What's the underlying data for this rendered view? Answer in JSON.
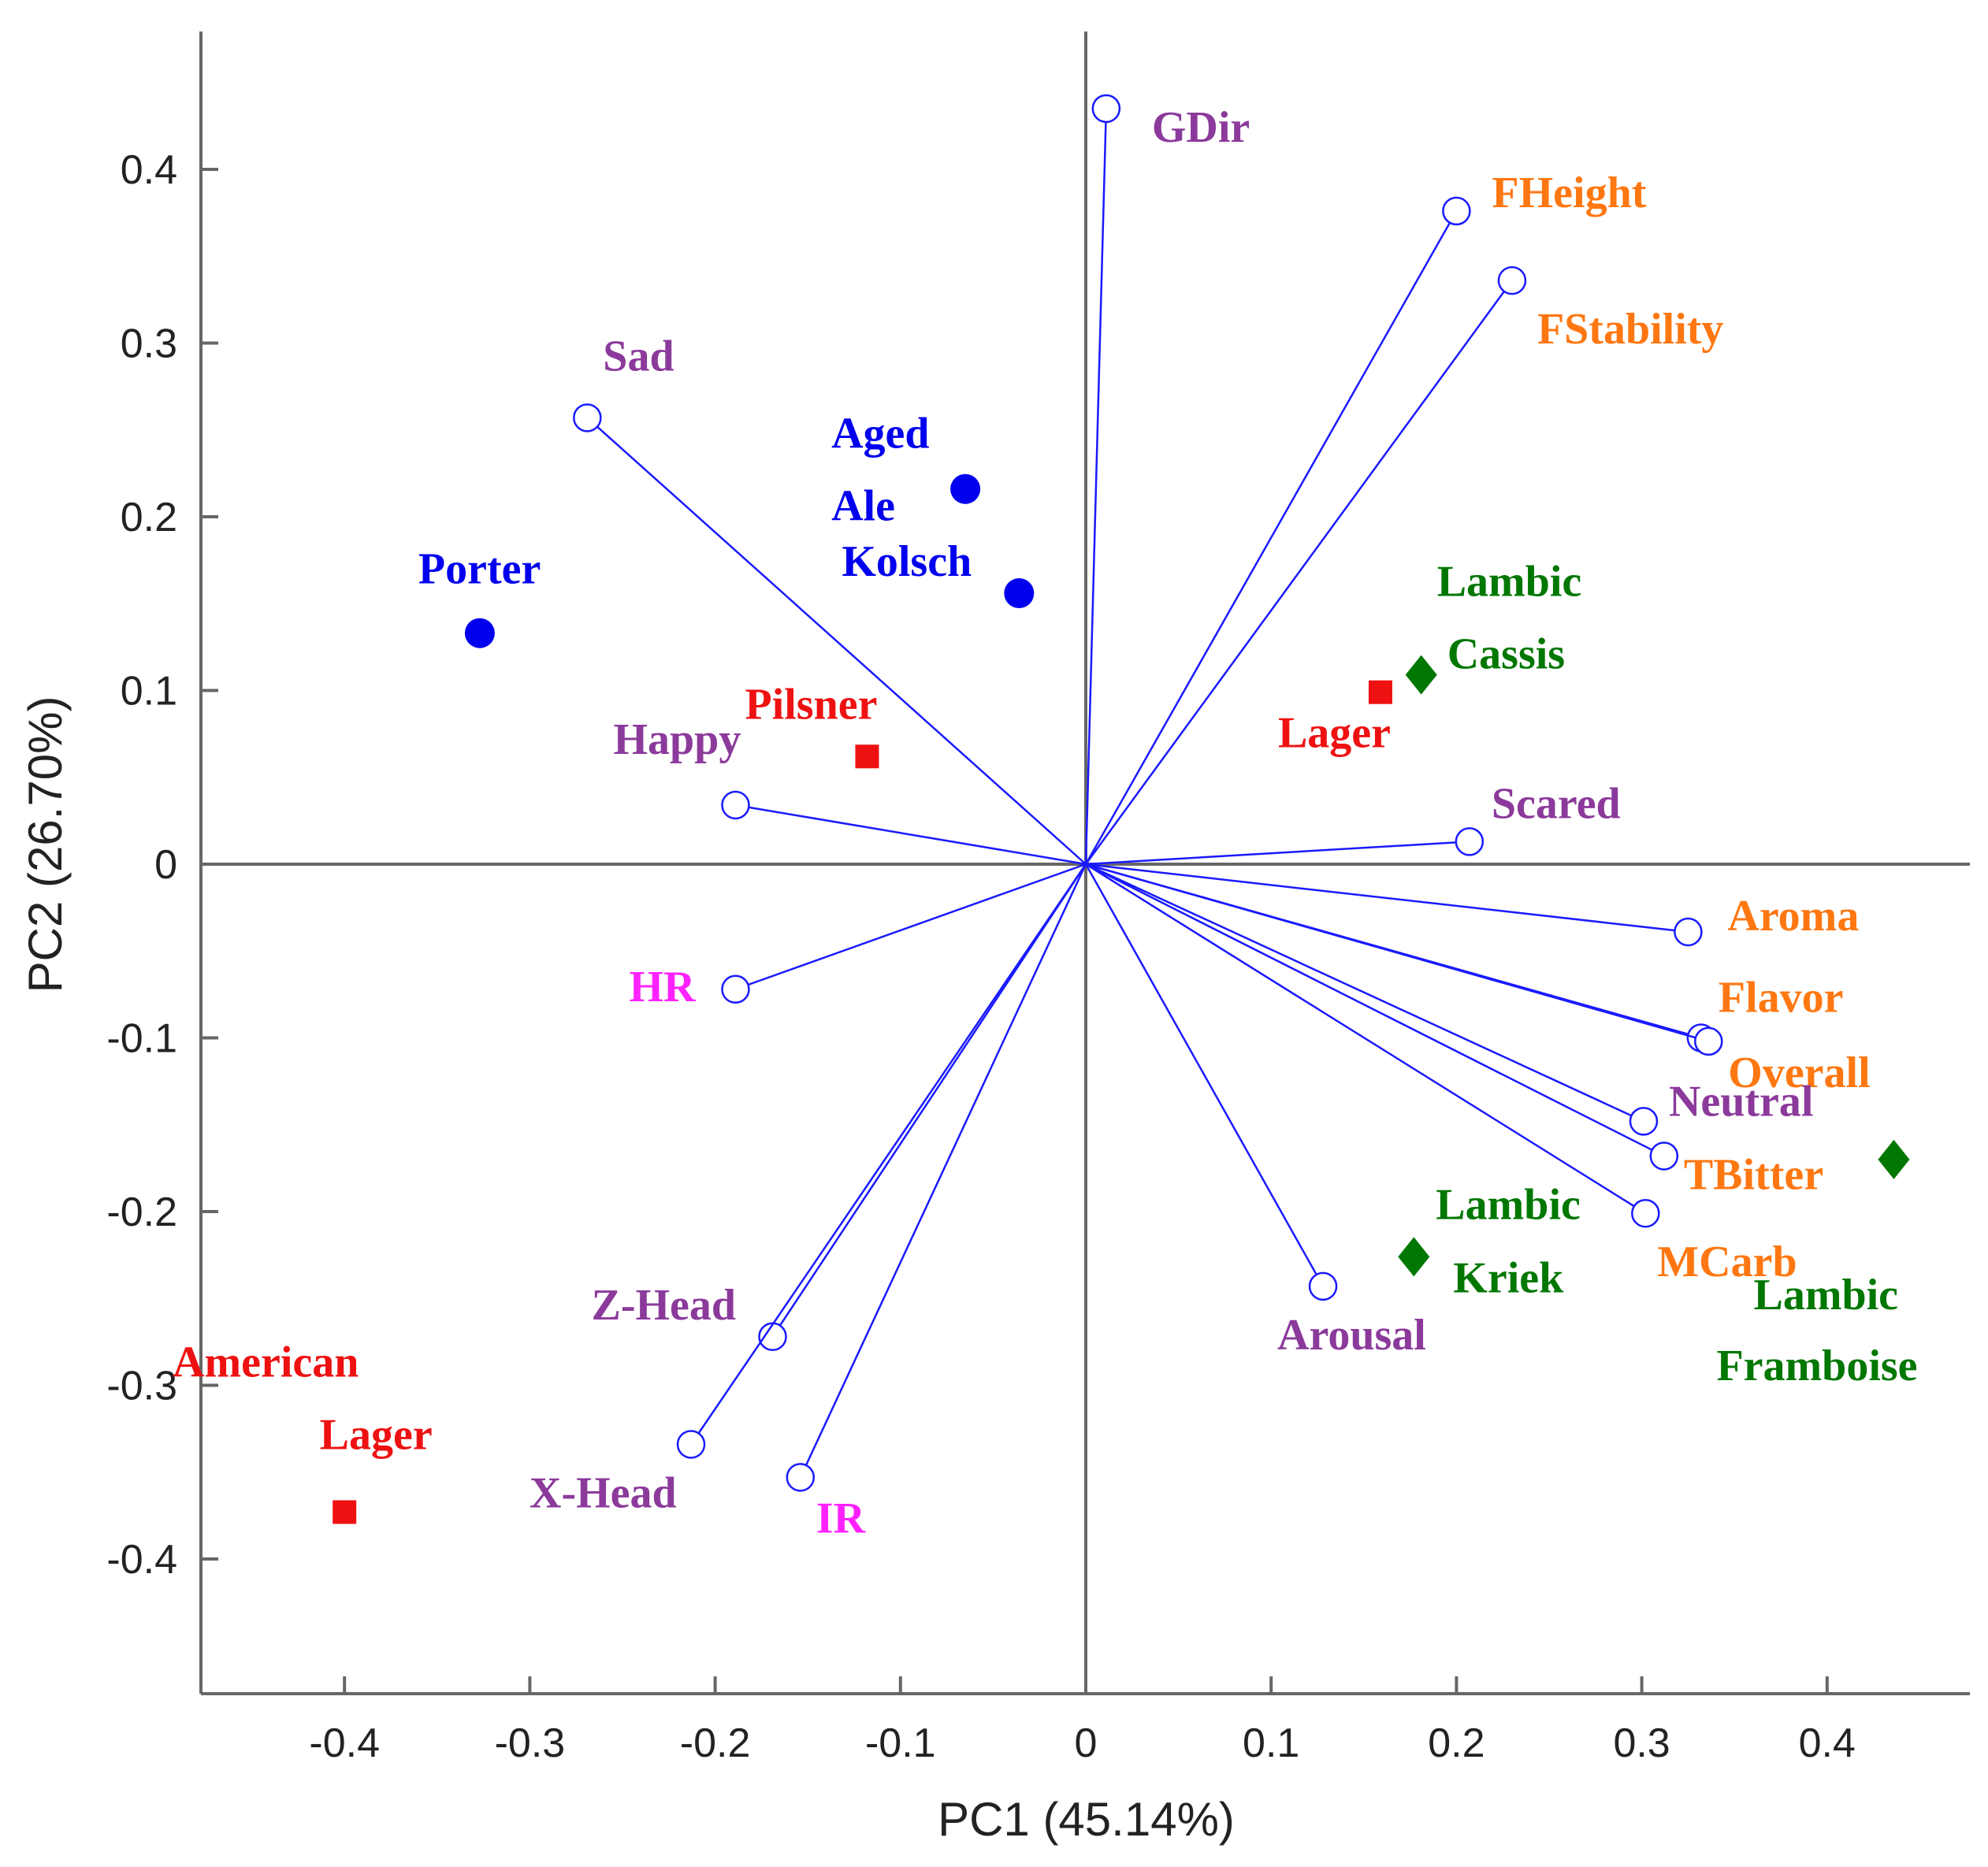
{
  "chart_data": {
    "type": "scatter",
    "title": "",
    "xlabel": "PC1 (45.14%)",
    "ylabel": "PC2 (26.70%)",
    "xlim": [
      -0.48,
      0.48
    ],
    "ylim": [
      -0.48,
      0.48
    ],
    "x_ticks": [
      -0.4,
      -0.3,
      -0.2,
      -0.1,
      0,
      0.1,
      0.2,
      0.3,
      0.4
    ],
    "x_tick_labels": [
      "-0.4",
      "-0.3",
      "-0.2",
      "-0.1",
      "0",
      "0.1",
      "0.2",
      "0.3",
      "0.4"
    ],
    "y_ticks": [
      0.4,
      0.3,
      0.2,
      0.1,
      0,
      -0.1,
      -0.2,
      -0.3,
      -0.4
    ],
    "y_tick_labels": [
      "0.4",
      "0.3",
      "0.2",
      "0.1",
      "0",
      "-0.1",
      "-0.2",
      "-0.3",
      "-0.4"
    ],
    "colors": {
      "vector": "#1a1aff",
      "ale": "#0000ee",
      "lager": "#ee1111",
      "lambic": "#007700",
      "emotion": "#8b3a9b",
      "physio": "#ff22ff",
      "quality": "#ff7711",
      "axis": "#666666"
    },
    "loadings": [
      {
        "name": "GDir",
        "x": 0.011,
        "y": 0.435,
        "group": "emotion"
      },
      {
        "name": "FHeight",
        "x": 0.2,
        "y": 0.376,
        "group": "quality"
      },
      {
        "name": "FStability",
        "x": 0.23,
        "y": 0.336,
        "group": "quality"
      },
      {
        "name": "Sad",
        "x": -0.269,
        "y": 0.257,
        "group": "emotion"
      },
      {
        "name": "Happy",
        "x": -0.189,
        "y": 0.034,
        "group": "emotion"
      },
      {
        "name": "Scared",
        "x": 0.207,
        "y": 0.013,
        "group": "emotion"
      },
      {
        "name": "HR",
        "x": -0.189,
        "y": -0.072,
        "group": "physio"
      },
      {
        "name": "Aroma",
        "x": 0.325,
        "y": -0.039,
        "group": "quality"
      },
      {
        "name": "Flavor",
        "x": 0.332,
        "y": -0.1,
        "group": "quality"
      },
      {
        "name": "Overall",
        "x": 0.336,
        "y": -0.102,
        "group": "quality"
      },
      {
        "name": "Neutral",
        "x": 0.301,
        "y": -0.148,
        "group": "emotion"
      },
      {
        "name": "TBitter",
        "x": 0.312,
        "y": -0.168,
        "group": "quality"
      },
      {
        "name": "MCarb",
        "x": 0.302,
        "y": -0.201,
        "group": "quality"
      },
      {
        "name": "Arousal",
        "x": 0.128,
        "y": -0.243,
        "group": "emotion"
      },
      {
        "name": "Z-Head",
        "x": -0.169,
        "y": -0.272,
        "group": "emotion"
      },
      {
        "name": "X-Head",
        "x": -0.213,
        "y": -0.334,
        "group": "emotion"
      },
      {
        "name": "IR",
        "x": -0.154,
        "y": -0.353,
        "group": "physio"
      }
    ],
    "samples": [
      {
        "name": "Porter",
        "lines": [
          "Porter"
        ],
        "x": -0.327,
        "y": 0.133,
        "group": "ale",
        "marker": "circle"
      },
      {
        "name": "Aged Ale",
        "lines": [
          "Aged",
          "Ale"
        ],
        "x": -0.065,
        "y": 0.216,
        "group": "ale",
        "marker": "circle"
      },
      {
        "name": "Kolsch",
        "lines": [
          "Kolsch"
        ],
        "x": -0.036,
        "y": 0.156,
        "group": "ale",
        "marker": "circle"
      },
      {
        "name": "Pilsner",
        "lines": [
          "Pilsner"
        ],
        "x": -0.118,
        "y": 0.062,
        "group": "lager",
        "marker": "square"
      },
      {
        "name": "Lager",
        "lines": [
          "Lager"
        ],
        "x": 0.159,
        "y": 0.099,
        "group": "lager",
        "marker": "square"
      },
      {
        "name": "American Lager",
        "lines": [
          "American",
          "Lager"
        ],
        "x": -0.4,
        "y": -0.373,
        "group": "lager",
        "marker": "square"
      },
      {
        "name": "Lambic Cassis",
        "lines": [
          "Lambic",
          "Cassis"
        ],
        "x": 0.181,
        "y": 0.109,
        "group": "lambic",
        "marker": "diamond"
      },
      {
        "name": "Lambic Kriek",
        "lines": [
          "Lambic",
          "Kriek"
        ],
        "x": 0.177,
        "y": -0.226,
        "group": "lambic",
        "marker": "diamond"
      },
      {
        "name": "Lambic Framboise",
        "lines": [
          "Lambic",
          "Framboise"
        ],
        "x": 0.436,
        "y": -0.17,
        "group": "lambic",
        "marker": "diamond"
      }
    ]
  }
}
